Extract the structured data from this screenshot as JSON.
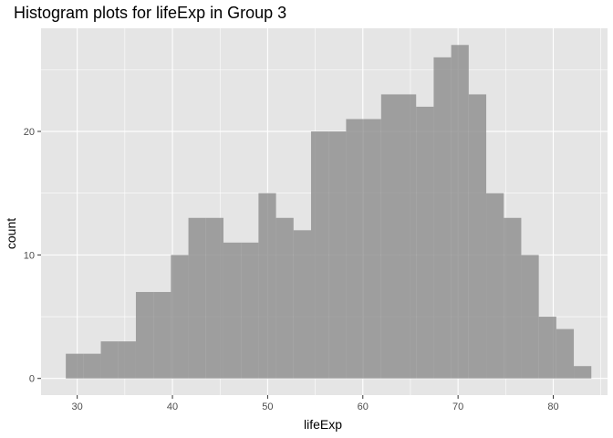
{
  "chart_data": {
    "type": "bar",
    "subtype": "histogram",
    "title": "Histogram plots for lifeExp in Group 3",
    "xlabel": "lifeExp",
    "ylabel": "count",
    "xlim": [
      26.2,
      85.7
    ],
    "ylim": [
      -1.35,
      28.35
    ],
    "x_ticks": [
      30,
      40,
      50,
      60,
      70,
      80
    ],
    "y_ticks": [
      0,
      10,
      20
    ],
    "grid": true,
    "bins": [
      {
        "x0": 28.8,
        "x1": 30.64,
        "count": 2
      },
      {
        "x0": 30.64,
        "x1": 32.48,
        "count": 2
      },
      {
        "x0": 32.48,
        "x1": 34.32,
        "count": 3
      },
      {
        "x0": 34.32,
        "x1": 36.16,
        "count": 3
      },
      {
        "x0": 36.16,
        "x1": 38.0,
        "count": 7
      },
      {
        "x0": 38.0,
        "x1": 39.84,
        "count": 7
      },
      {
        "x0": 39.84,
        "x1": 41.68,
        "count": 10
      },
      {
        "x0": 41.68,
        "x1": 43.52,
        "count": 13
      },
      {
        "x0": 43.52,
        "x1": 45.36,
        "count": 13
      },
      {
        "x0": 45.36,
        "x1": 47.2,
        "count": 11
      },
      {
        "x0": 47.2,
        "x1": 49.04,
        "count": 11
      },
      {
        "x0": 49.04,
        "x1": 50.88,
        "count": 15
      },
      {
        "x0": 50.88,
        "x1": 52.72,
        "count": 13
      },
      {
        "x0": 52.72,
        "x1": 54.56,
        "count": 12
      },
      {
        "x0": 54.56,
        "x1": 56.4,
        "count": 20
      },
      {
        "x0": 56.4,
        "x1": 58.24,
        "count": 20
      },
      {
        "x0": 58.24,
        "x1": 60.08,
        "count": 21
      },
      {
        "x0": 60.08,
        "x1": 61.92,
        "count": 21
      },
      {
        "x0": 61.92,
        "x1": 63.76,
        "count": 23
      },
      {
        "x0": 63.76,
        "x1": 65.6,
        "count": 23
      },
      {
        "x0": 65.6,
        "x1": 67.44,
        "count": 22
      },
      {
        "x0": 67.44,
        "x1": 69.28,
        "count": 26
      },
      {
        "x0": 69.28,
        "x1": 71.12,
        "count": 27
      },
      {
        "x0": 71.12,
        "x1": 72.96,
        "count": 23
      },
      {
        "x0": 72.96,
        "x1": 74.8,
        "count": 15
      },
      {
        "x0": 74.8,
        "x1": 76.64,
        "count": 13
      },
      {
        "x0": 76.64,
        "x1": 78.48,
        "count": 10
      },
      {
        "x0": 78.48,
        "x1": 80.32,
        "count": 5
      },
      {
        "x0": 80.32,
        "x1": 82.16,
        "count": 4
      },
      {
        "x0": 82.16,
        "x1": 84.0,
        "count": 1
      }
    ],
    "colors": {
      "panel_background": "#e5e5e5",
      "grid_major": "#ffffff",
      "bar_fill": "#8c8c8c",
      "bar_opacity": 0.8
    }
  }
}
